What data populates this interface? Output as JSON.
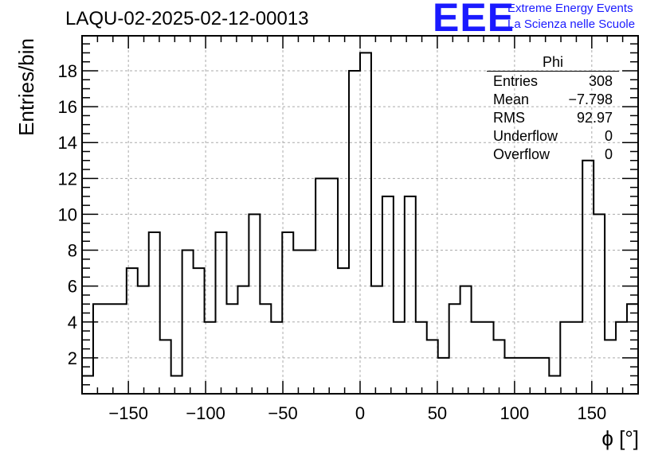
{
  "title": "LAQU-02-2025-02-12-00013",
  "logo": {
    "mark": "EEE",
    "line1": "Extreme Energy Events",
    "line2": "La Scienza nelle Scuole",
    "color": "#1a1aff"
  },
  "stats": {
    "name": "Phi",
    "rows": [
      {
        "key": "Entries",
        "value": "308"
      },
      {
        "key": "Mean",
        "value": "−7.798"
      },
      {
        "key": "RMS",
        "value": "92.97"
      },
      {
        "key": "Underflow",
        "value": "0"
      },
      {
        "key": "Overflow",
        "value": "0"
      }
    ]
  },
  "chart_data": {
    "type": "histogram",
    "xlabel": "ϕ [°]",
    "ylabel": "Entries/bin",
    "xlim": [
      -180,
      180
    ],
    "ylim": [
      0,
      19.95
    ],
    "bin_width": 7.2,
    "grid": true,
    "xticks": [
      -150,
      -100,
      -50,
      0,
      50,
      100,
      150
    ],
    "xtick_labels": [
      "−150",
      "−100",
      "−50",
      "0",
      "50",
      "100",
      "150"
    ],
    "yticks": [
      2,
      4,
      6,
      8,
      10,
      12,
      14,
      16,
      18
    ],
    "ytick_labels": [
      "2",
      "4",
      "6",
      "8",
      "10",
      "12",
      "14",
      "16",
      "18"
    ],
    "bins": [
      {
        "x": -176.4,
        "count": 1
      },
      {
        "x": -169.2,
        "count": 5
      },
      {
        "x": -162.0,
        "count": 5
      },
      {
        "x": -154.8,
        "count": 5
      },
      {
        "x": -147.6,
        "count": 7
      },
      {
        "x": -140.4,
        "count": 6
      },
      {
        "x": -133.2,
        "count": 9
      },
      {
        "x": -126.0,
        "count": 3
      },
      {
        "x": -118.8,
        "count": 1
      },
      {
        "x": -111.6,
        "count": 8
      },
      {
        "x": -104.4,
        "count": 7
      },
      {
        "x": -97.2,
        "count": 4
      },
      {
        "x": -90.0,
        "count": 9
      },
      {
        "x": -82.8,
        "count": 5
      },
      {
        "x": -75.6,
        "count": 6
      },
      {
        "x": -68.4,
        "count": 10
      },
      {
        "x": -61.2,
        "count": 5
      },
      {
        "x": -54.0,
        "count": 4
      },
      {
        "x": -46.8,
        "count": 9
      },
      {
        "x": -39.6,
        "count": 8
      },
      {
        "x": -32.4,
        "count": 8
      },
      {
        "x": -25.2,
        "count": 12
      },
      {
        "x": -18.0,
        "count": 12
      },
      {
        "x": -10.8,
        "count": 7
      },
      {
        "x": -3.6,
        "count": 18
      },
      {
        "x": 3.6,
        "count": 19
      },
      {
        "x": 10.8,
        "count": 6
      },
      {
        "x": 18.0,
        "count": 11
      },
      {
        "x": 25.2,
        "count": 4
      },
      {
        "x": 32.4,
        "count": 11
      },
      {
        "x": 39.6,
        "count": 4
      },
      {
        "x": 46.8,
        "count": 3
      },
      {
        "x": 54.0,
        "count": 2
      },
      {
        "x": 61.2,
        "count": 5
      },
      {
        "x": 68.4,
        "count": 6
      },
      {
        "x": 75.6,
        "count": 4
      },
      {
        "x": 82.8,
        "count": 4
      },
      {
        "x": 90.0,
        "count": 3
      },
      {
        "x": 97.2,
        "count": 2
      },
      {
        "x": 104.4,
        "count": 2
      },
      {
        "x": 111.6,
        "count": 2
      },
      {
        "x": 118.8,
        "count": 2
      },
      {
        "x": 126.0,
        "count": 1
      },
      {
        "x": 133.2,
        "count": 4
      },
      {
        "x": 140.4,
        "count": 4
      },
      {
        "x": 147.6,
        "count": 13
      },
      {
        "x": 154.8,
        "count": 10
      },
      {
        "x": 162.0,
        "count": 3
      },
      {
        "x": 169.2,
        "count": 4
      },
      {
        "x": 176.4,
        "count": 5
      }
    ]
  }
}
